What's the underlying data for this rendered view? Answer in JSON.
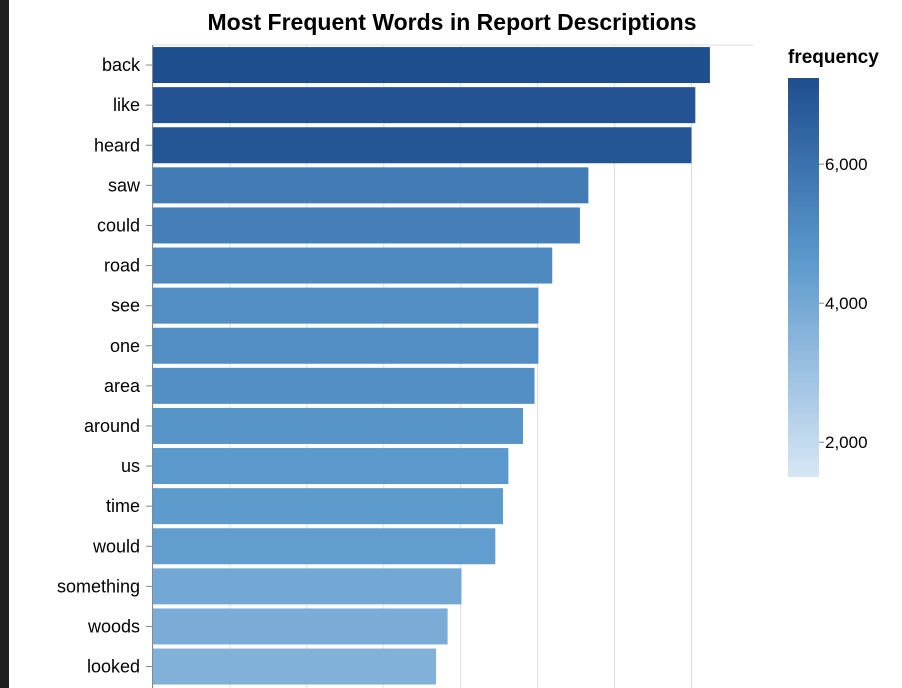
{
  "chart_data": {
    "type": "bar",
    "orientation": "horizontal",
    "title": "Most Frequent Words in Report Descriptions",
    "xlabel": "",
    "ylabel": "",
    "xlim": [
      0,
      7800
    ],
    "grid": true,
    "categories": [
      "back",
      "like",
      "heard",
      "saw",
      "could",
      "road",
      "see",
      "one",
      "area",
      "around",
      "us",
      "time",
      "would",
      "something",
      "woods",
      "looked"
    ],
    "values": [
      7240,
      7050,
      7000,
      5660,
      5550,
      5190,
      5010,
      5010,
      4960,
      4810,
      4620,
      4550,
      4450,
      4010,
      3830,
      3680
    ],
    "legend": {
      "title": "frequency",
      "placement": "right",
      "ticks": [
        {
          "value": 2000,
          "label": "2,000"
        },
        {
          "value": 4000,
          "label": "4,000"
        },
        {
          "value": 6000,
          "label": "6,000"
        }
      ],
      "domain": [
        1500,
        7240
      ],
      "color_low": "#d7e6f5",
      "color_mid": "#5a98cc",
      "color_high": "#1f4e8f"
    }
  }
}
